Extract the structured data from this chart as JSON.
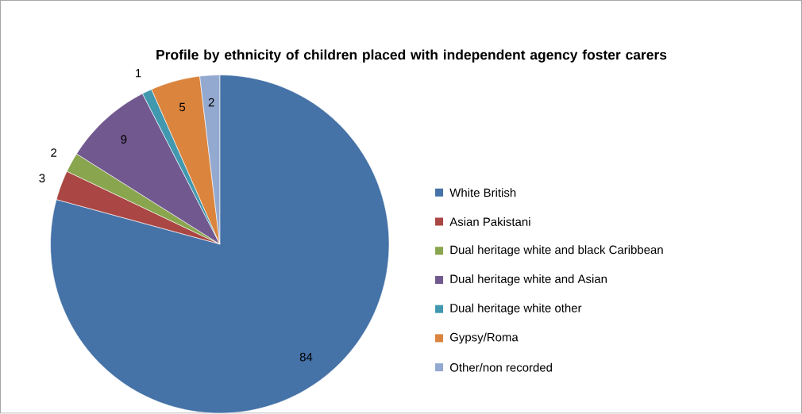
{
  "chart_data": {
    "type": "pie",
    "title": "Profile by ethnicity of children placed with independent agency foster carers",
    "categories": [
      "White British",
      "Asian Pakistani",
      "Dual heritage white and black Caribbean",
      "Dual heritage white and Asian",
      "Dual heritage white other",
      "Gypsy/Roma",
      "Other/non recorded"
    ],
    "values": [
      84,
      3,
      2,
      9,
      1,
      5,
      2
    ],
    "colors": [
      "#4572a7",
      "#aa4643",
      "#89a54e",
      "#71588f",
      "#4198af",
      "#db843d",
      "#93a9cf"
    ],
    "data_labels": true,
    "legend": "right"
  }
}
